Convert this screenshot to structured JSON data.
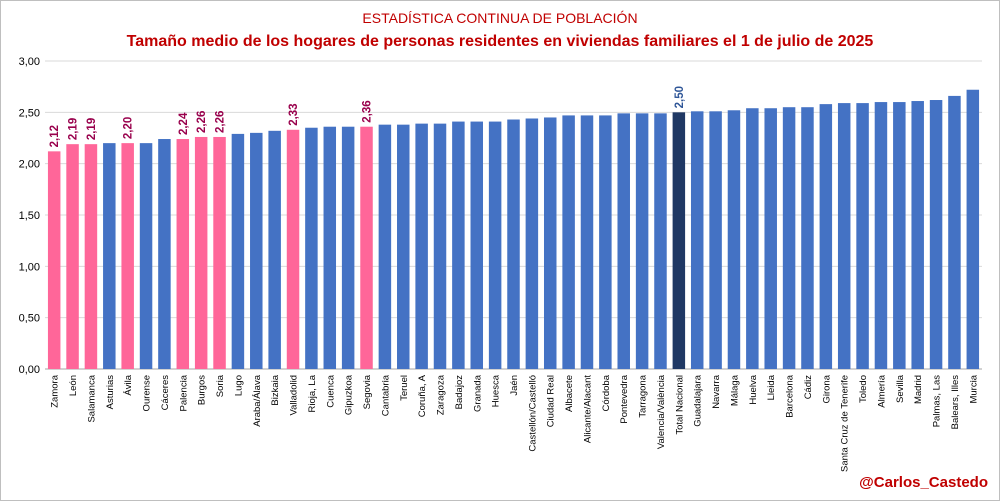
{
  "header": {
    "supertitle": "ESTADÍSTICA CONTINUA DE POBLACIÓN",
    "title": "Tamaño medio de los hogares de personas residentes en viviendas familiares el 1 de julio de 2025"
  },
  "credit": "@Carlos_Castedo",
  "colors": {
    "default": "#4472c4",
    "highlight": "#ff6699",
    "national": "#1f3864",
    "title": "#c00000",
    "highlight_label": "#99004c",
    "national_label": "#2e5597",
    "gridline": "#d9d9d9"
  },
  "chart_data": {
    "type": "bar",
    "title": "Tamaño medio de los hogares de personas residentes en viviendas familiares el 1 de julio de 2025",
    "ylim": [
      0,
      3
    ],
    "yticks": [
      "0,00",
      "0,50",
      "1,00",
      "1,50",
      "2,00",
      "2,50",
      "3,00"
    ],
    "grid": true,
    "legend": "none",
    "categories": [
      "Zamora",
      "León",
      "Salamanca",
      "Asturias",
      "Ávila",
      "Ourense",
      "Cáceres",
      "Palencia",
      "Burgos",
      "Soria",
      "Lugo",
      "Araba/Álava",
      "Bizkaia",
      "Valladolid",
      "Rioja, La",
      "Cuenca",
      "Gipuzkoa",
      "Segovia",
      "Cantabria",
      "Teruel",
      "Coruña, A",
      "Zaragoza",
      "Badajoz",
      "Granada",
      "Huesca",
      "Jaén",
      "Castellón/Castelló",
      "Ciudad Real",
      "Albacete",
      "Alicante/Alacant",
      "Córdoba",
      "Pontevedra",
      "Tarragona",
      "Valencia/València",
      "Total Nacional",
      "Guadalajara",
      "Navarra",
      "Málaga",
      "Huelva",
      "Lleida",
      "Barcelona",
      "Cádiz",
      "Girona",
      "Santa Cruz de Tenerife",
      "Toledo",
      "Almería",
      "Sevilla",
      "Madrid",
      "Palmas, Las",
      "Balears, Illes",
      "Murcia"
    ],
    "values": [
      2.12,
      2.19,
      2.19,
      2.2,
      2.2,
      2.2,
      2.24,
      2.24,
      2.26,
      2.26,
      2.29,
      2.3,
      2.32,
      2.33,
      2.35,
      2.36,
      2.36,
      2.36,
      2.38,
      2.38,
      2.39,
      2.39,
      2.41,
      2.41,
      2.41,
      2.43,
      2.44,
      2.45,
      2.47,
      2.47,
      2.47,
      2.49,
      2.49,
      2.49,
      2.5,
      2.51,
      2.51,
      2.52,
      2.54,
      2.54,
      2.55,
      2.55,
      2.58,
      2.59,
      2.59,
      2.6,
      2.6,
      2.61,
      2.62,
      2.66,
      2.72
    ],
    "highlighted": [
      "Zamora",
      "León",
      "Salamanca",
      "Ávila",
      "Palencia",
      "Burgos",
      "Soria",
      "Valladolid",
      "Segovia"
    ],
    "national": "Total Nacional",
    "data_labels": [
      {
        "category": "Zamora",
        "text": "2,12"
      },
      {
        "category": "León",
        "text": "2,19"
      },
      {
        "category": "Salamanca",
        "text": "2,19"
      },
      {
        "category": "Ávila",
        "text": "2,20"
      },
      {
        "category": "Palencia",
        "text": "2,24"
      },
      {
        "category": "Burgos",
        "text": "2,26"
      },
      {
        "category": "Soria",
        "text": "2,26"
      },
      {
        "category": "Valladolid",
        "text": "2,33"
      },
      {
        "category": "Segovia",
        "text": "2,36"
      },
      {
        "category": "Total Nacional",
        "text": "2,50"
      }
    ]
  }
}
